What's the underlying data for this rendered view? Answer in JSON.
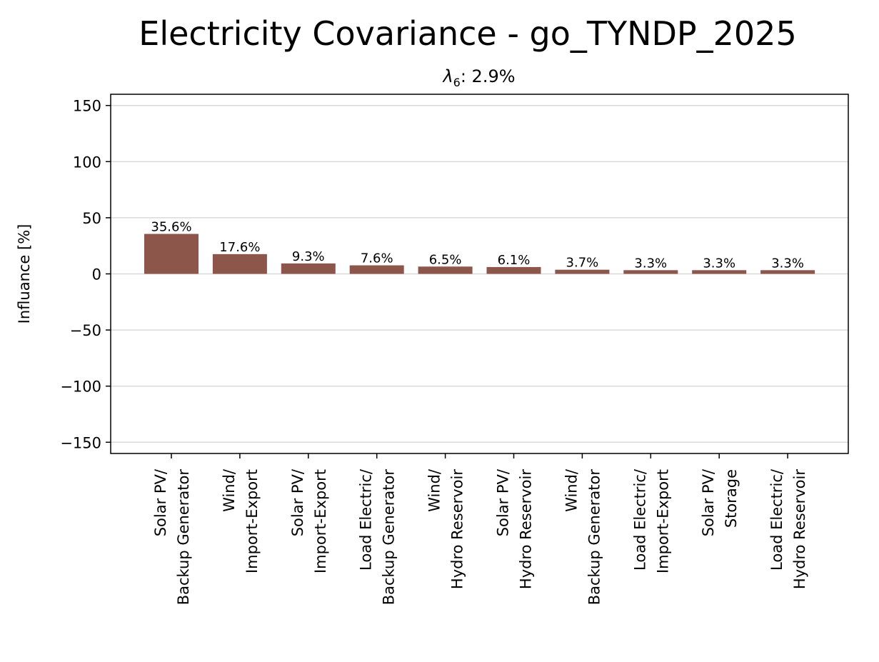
{
  "chart_data": {
    "type": "bar",
    "title": "Electricity Covariance - go_TYNDP_2025",
    "subtitle": "λ6: 2.9%",
    "subtitle_parts": {
      "symbol": "λ",
      "subscript": "6",
      "rest": ": 2.9%"
    },
    "xlabel": "",
    "ylabel": "Influance [%]",
    "ylim": [
      -160,
      160
    ],
    "yticks": [
      150,
      100,
      50,
      0,
      -50,
      -100,
      -150
    ],
    "ytick_labels": [
      "150",
      "100",
      "50",
      "0",
      "−50",
      "−100",
      "−150"
    ],
    "grid": true,
    "bar_color": "#8c564b",
    "categories": [
      [
        "Solar PV/",
        "Backup Generator"
      ],
      [
        "Wind/",
        "Import-Export"
      ],
      [
        "Solar PV/",
        "Import-Export"
      ],
      [
        "Load Electric/",
        "Backup Generator"
      ],
      [
        "Wind/",
        "Hydro Reservoir"
      ],
      [
        "Solar PV/",
        "Hydro Reservoir"
      ],
      [
        "Wind/",
        "Backup Generator"
      ],
      [
        "Load Electric/",
        "Import-Export"
      ],
      [
        "Solar PV/",
        "Storage"
      ],
      [
        "Load Electric/",
        "Hydro Reservoir"
      ]
    ],
    "values": [
      35.6,
      17.6,
      9.3,
      7.6,
      6.5,
      6.1,
      3.7,
      3.3,
      3.3,
      3.3
    ],
    "value_labels": [
      "35.6%",
      "17.6%",
      "9.3%",
      "7.6%",
      "6.5%",
      "6.1%",
      "3.7%",
      "3.3%",
      "3.3%",
      "3.3%"
    ]
  }
}
